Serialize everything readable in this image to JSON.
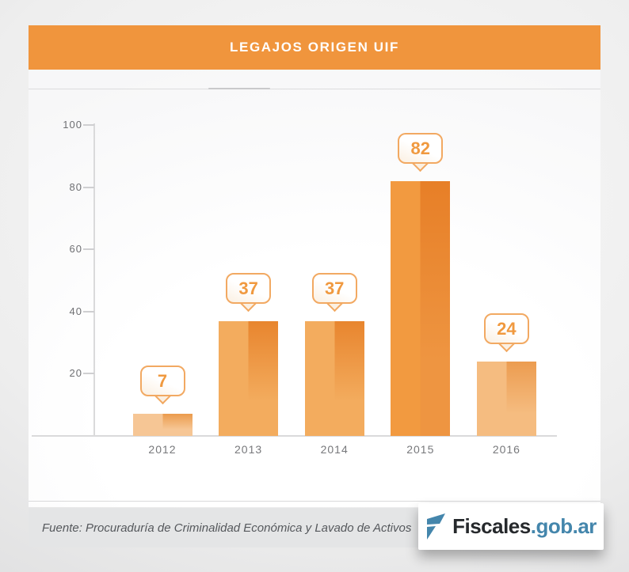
{
  "header": {
    "title": "LEGAJOS ORIGEN UIF",
    "bg": "#F0953D",
    "text_color": "#FFFFFF"
  },
  "chart_data": {
    "type": "bar",
    "title": "LEGAJOS ORIGEN UIF",
    "categories": [
      "2012",
      "2013",
      "2014",
      "2015",
      "2016"
    ],
    "values": [
      7,
      37,
      37,
      82,
      24
    ],
    "data_labels": [
      "7",
      "37",
      "37",
      "82",
      "24"
    ],
    "xlabel": "",
    "ylabel": "",
    "ylim": [
      0,
      100
    ],
    "yticks": [
      20,
      40,
      60,
      80,
      100
    ],
    "grid": false,
    "legend": false,
    "bar_styles": [
      {
        "left": "#F6C695",
        "right_top": "#EB9B4C",
        "right_bottom": "#F6C695"
      },
      {
        "left": "#F3AC5E",
        "right_top": "#E8852E",
        "right_bottom": "#F3AC5E"
      },
      {
        "left": "#F3AC5E",
        "right_top": "#E8852E",
        "right_bottom": "#F3AC5E"
      },
      {
        "left": "#F29A40",
        "right_top": "#E77F27",
        "right_bottom": "#EE9541"
      },
      {
        "left": "#F5BC80",
        "right_top": "#EC9C50",
        "right_bottom": "#F5BC80"
      }
    ],
    "callout_style": {
      "border": "#F2A962",
      "text": "#F0993F",
      "bg_from": "#FFFFFF",
      "bg_to": "#FBF0E2"
    },
    "axis_style": {
      "line": "#DADADB",
      "tick": "#CFCFD1",
      "y_label_color": "#6E6F72",
      "x_label_color": "#77787B"
    }
  },
  "footer": {
    "source_text": "Fuente: Procuraduría de Criminalidad Económica y Lavado de Activos"
  },
  "logo": {
    "brand": "Fiscales",
    "suffix": ".gob.ar",
    "blue": "#4486AC",
    "dark": "#26292C"
  }
}
